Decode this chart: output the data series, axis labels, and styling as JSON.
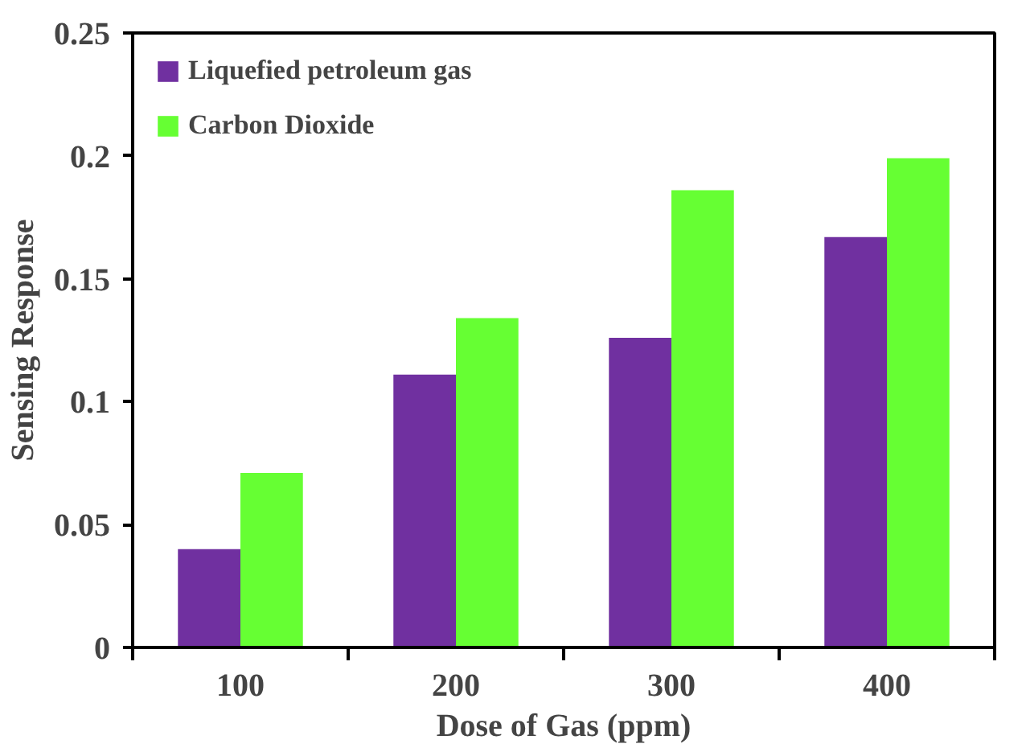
{
  "chart_data": {
    "type": "bar",
    "xlabel": "Dose of Gas (ppm)",
    "ylabel": "Sensing Response",
    "categories": [
      "100",
      "200",
      "300",
      "400"
    ],
    "series": [
      {
        "name": "Liquefied petroleum gas",
        "color": "#7030a0",
        "values": [
          0.04,
          0.111,
          0.126,
          0.167
        ]
      },
      {
        "name": "Carbon Dioxide",
        "color": "#66ff33",
        "values": [
          0.071,
          0.134,
          0.186,
          0.199
        ]
      }
    ],
    "ylim": [
      0,
      0.25
    ],
    "yticks": [
      0,
      0.05,
      0.1,
      0.15,
      0.2,
      0.25
    ],
    "grid": false,
    "legend": "top left"
  }
}
